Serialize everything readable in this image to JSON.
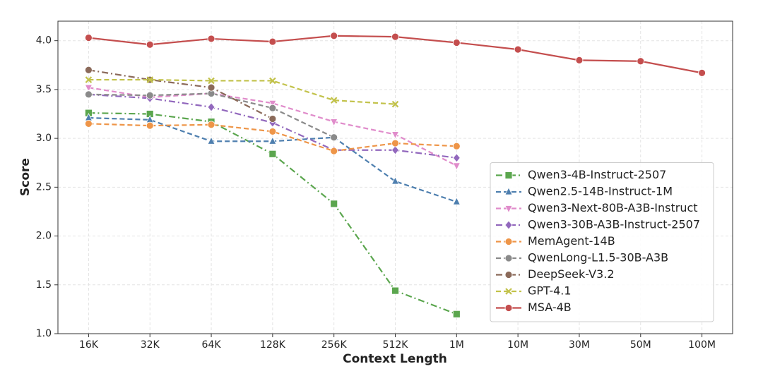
{
  "chart_data": {
    "type": "line",
    "xlabel": "Context Length",
    "ylabel": "Score",
    "categories": [
      "16K",
      "32K",
      "64K",
      "128K",
      "256K",
      "512K",
      "1M",
      "10M",
      "30M",
      "50M",
      "100M"
    ],
    "ylim": [
      1.0,
      4.2
    ],
    "yticks": [
      {
        "value": 1,
        "label": "1.0"
      },
      1.5,
      {
        "value": 2,
        "label": "2.0"
      },
      2.5,
      {
        "value": 3,
        "label": "3.0"
      },
      3.5,
      {
        "value": 4,
        "label": "4.0"
      }
    ],
    "grid": true,
    "legend": "lower right",
    "series": [
      {
        "name": "Qwen3-4B-Instruct-2507",
        "color": "#5ba64e",
        "dash": "dashdot",
        "marker": "square",
        "values": [
          3.26,
          3.25,
          3.17,
          2.84,
          2.33,
          1.44,
          1.2,
          null,
          null,
          null,
          null
        ]
      },
      {
        "name": "Qwen2.5-14B-Instruct-1M",
        "color": "#4e7faf",
        "dash": "dashed",
        "marker": "triangle-up",
        "values": [
          3.21,
          3.19,
          2.97,
          2.97,
          3.01,
          2.56,
          2.35,
          null,
          null,
          null,
          null
        ]
      },
      {
        "name": "Qwen3-Next-80B-A3B-Instruct",
        "color": "#e08ccb",
        "dash": "dashed",
        "marker": "triangle-down",
        "values": [
          3.52,
          3.42,
          3.46,
          3.36,
          3.17,
          3.04,
          2.72,
          null,
          null,
          null,
          null
        ]
      },
      {
        "name": "Qwen3-30B-A3B-Instruct-2507",
        "color": "#9268bd",
        "dash": "dashdot",
        "marker": "diamond",
        "values": [
          3.45,
          3.41,
          3.32,
          3.16,
          2.88,
          2.88,
          2.8,
          null,
          null,
          null,
          null
        ]
      },
      {
        "name": "MemAgent-14B",
        "color": "#ee9548",
        "dash": "dashed",
        "marker": "circle",
        "values": [
          3.15,
          3.13,
          3.14,
          3.07,
          2.87,
          2.95,
          2.92,
          null,
          null,
          null,
          null
        ]
      },
      {
        "name": "QwenLong-L1.5-30B-A3B",
        "color": "#8a8a8a",
        "dash": "dashed",
        "marker": "circle",
        "values": [
          3.45,
          3.44,
          3.46,
          3.31,
          3.01,
          null,
          null,
          null,
          null,
          null,
          null
        ]
      },
      {
        "name": "DeepSeek-V3.2",
        "color": "#8b6a5a",
        "dash": "dashdot",
        "marker": "circle",
        "values": [
          3.7,
          3.6,
          3.52,
          3.2,
          null,
          null,
          null,
          null,
          null,
          null,
          null
        ]
      },
      {
        "name": "GPT-4.1",
        "color": "#c2c24a",
        "dash": "dashed",
        "marker": "x",
        "values": [
          3.6,
          3.6,
          3.59,
          3.59,
          3.39,
          3.35,
          null,
          null,
          null,
          null,
          null
        ]
      },
      {
        "name": "MSA-4B",
        "color": "#c44e4e",
        "dash": "solid",
        "marker": "circle",
        "values": [
          4.03,
          3.96,
          4.02,
          3.99,
          4.05,
          4.04,
          3.98,
          3.91,
          3.8,
          3.79,
          3.67
        ]
      }
    ]
  }
}
